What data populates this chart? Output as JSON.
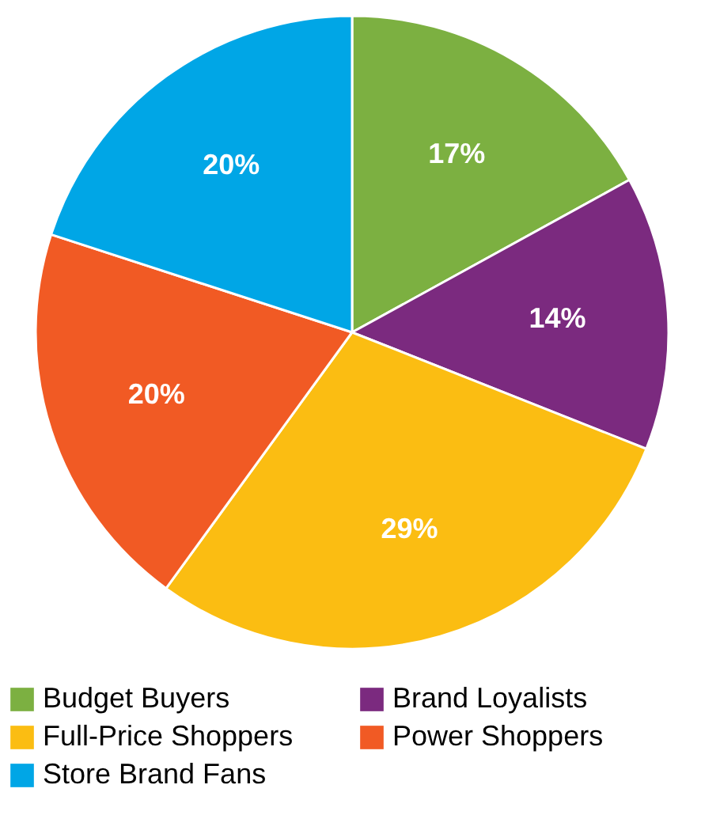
{
  "chart_data": {
    "type": "pie",
    "categories": [
      "Budget Buyers",
      "Brand Loyalists",
      "Full-Price Shoppers",
      "Power Shoppers",
      "Store Brand Fans"
    ],
    "values": [
      17,
      14,
      29,
      20,
      20
    ],
    "colors": [
      "#7cb041",
      "#7b2a7f",
      "#fbbd12",
      "#f15a24",
      "#00a6e6"
    ],
    "value_labels": [
      "17%",
      "14%",
      "29%",
      "20%",
      "20%"
    ],
    "legend": "bottom"
  }
}
